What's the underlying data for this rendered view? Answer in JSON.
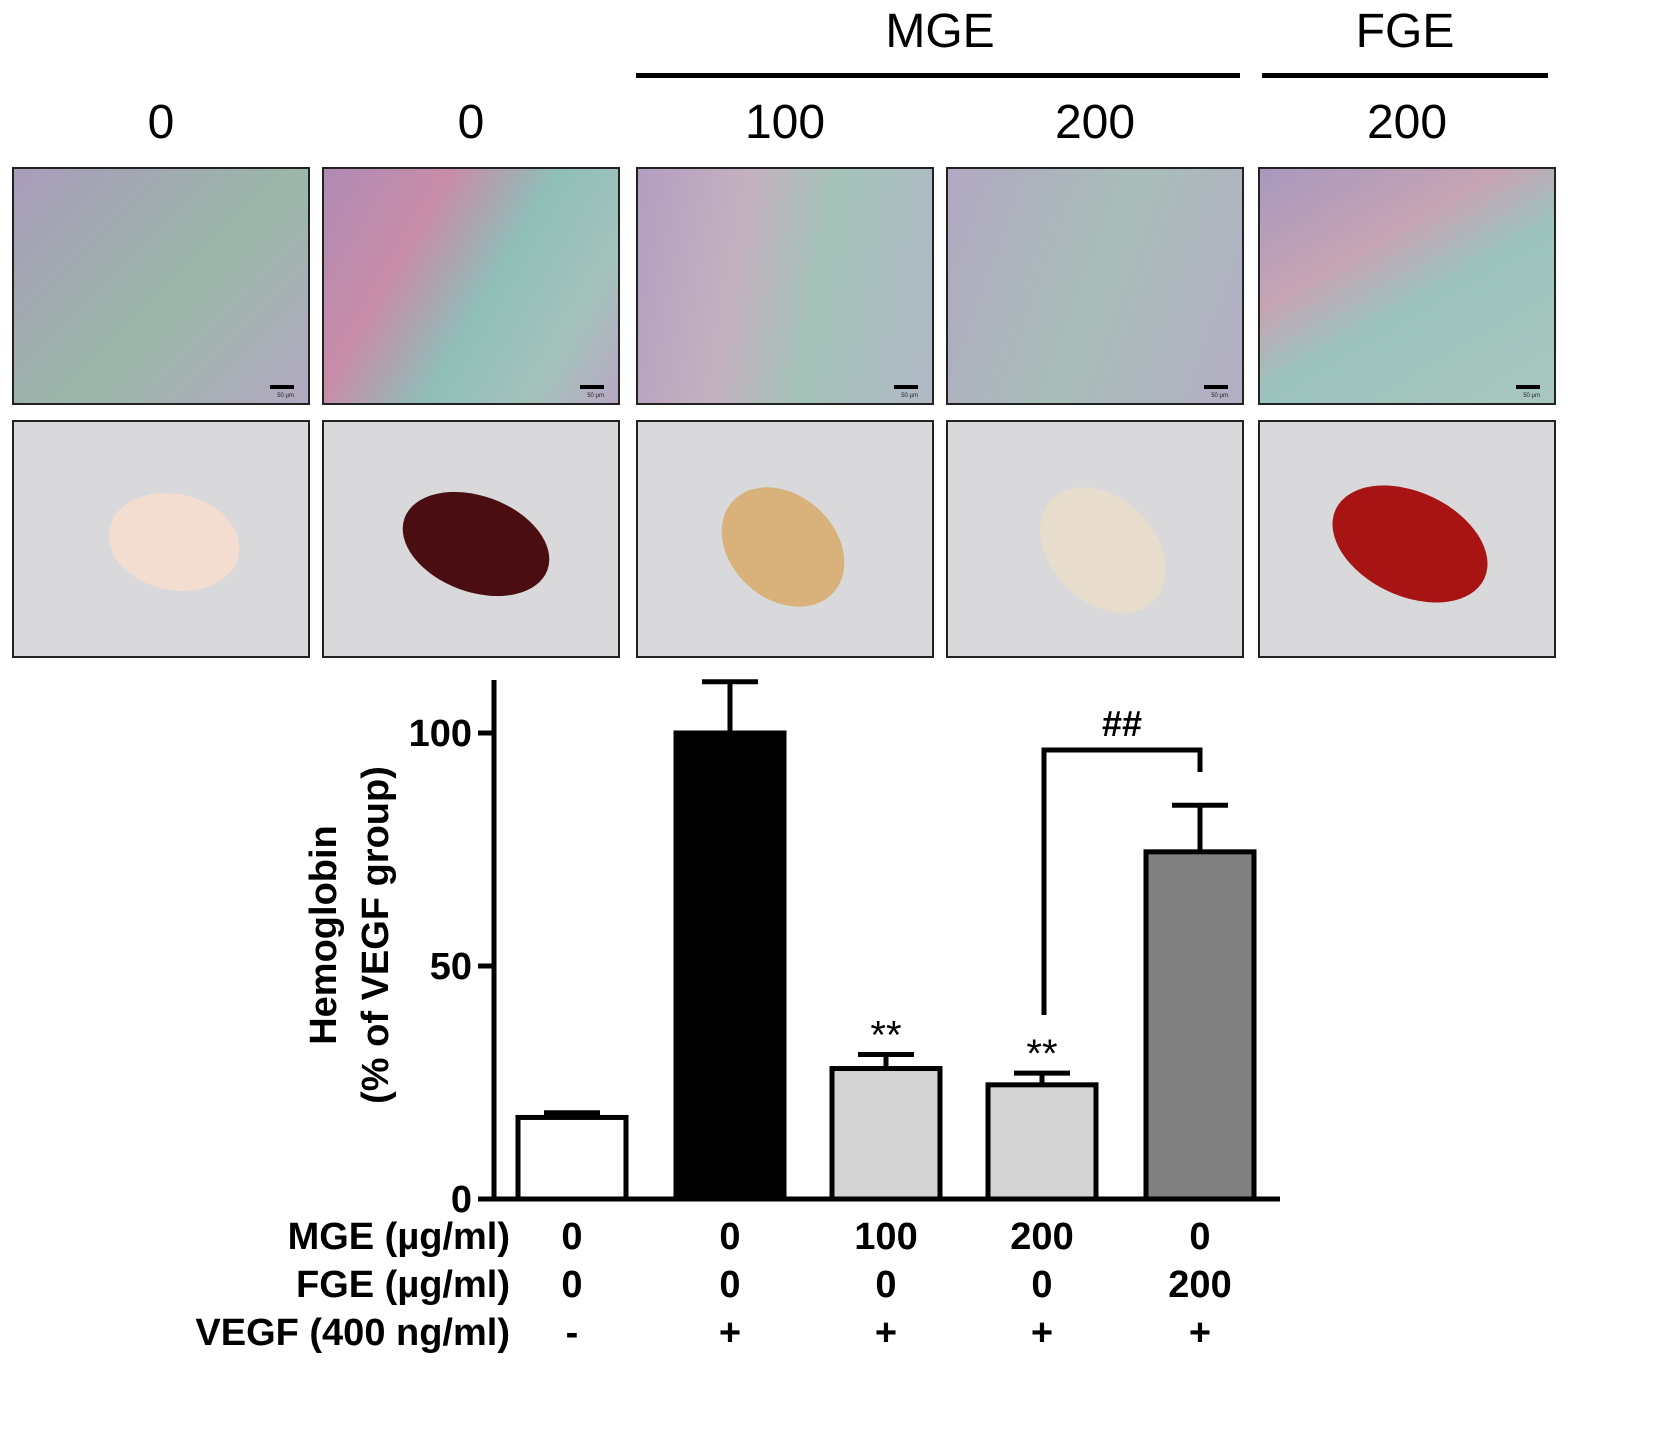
{
  "header": {
    "groups": [
      {
        "label": "MGE"
      },
      {
        "label": "FGE"
      }
    ],
    "doses": [
      "0",
      "0",
      "100",
      "200",
      "200"
    ]
  },
  "panels": {
    "histology": [
      "histology-panel-1",
      "histology-panel-2",
      "histology-panel-3",
      "histology-panel-4",
      "histology-panel-5"
    ],
    "plugs": [
      {
        "color": "#f2ddd0"
      },
      {
        "color": "#4a0d12"
      },
      {
        "color": "#d8b27a"
      },
      {
        "color": "#e8dccc"
      },
      {
        "color": "#a81414"
      }
    ],
    "scale_text": "50 µm"
  },
  "chart_data": {
    "type": "bar",
    "ylabel_line1": "Hemoglobin",
    "ylabel_line2": "(% of VEGF group)",
    "ylim": [
      0,
      110
    ],
    "yticks": [
      0,
      50,
      100
    ],
    "ytick_labels": [
      "0",
      "50",
      "100"
    ],
    "values": [
      17.5,
      100,
      28,
      24.5,
      74.5
    ],
    "errors": [
      1,
      11,
      3,
      2.5,
      10
    ],
    "colors": [
      "#ffffff",
      "#000000",
      "#d4d4d4",
      "#d4d4d4",
      "#808080"
    ],
    "significance": [
      "",
      "",
      "**",
      "**",
      ""
    ],
    "bracket": {
      "from": 3,
      "to": 4,
      "label": "##"
    }
  },
  "conditions": {
    "rows": [
      {
        "label": "MGE (µg/ml)",
        "values": [
          "0",
          "0",
          "100",
          "200",
          "0"
        ]
      },
      {
        "label": "FGE (µg/ml)",
        "values": [
          "0",
          "0",
          "0",
          "0",
          "200"
        ]
      },
      {
        "label": "VEGF (400 ng/ml)",
        "values": [
          "-",
          "+",
          "+",
          "+",
          "+"
        ]
      }
    ]
  }
}
